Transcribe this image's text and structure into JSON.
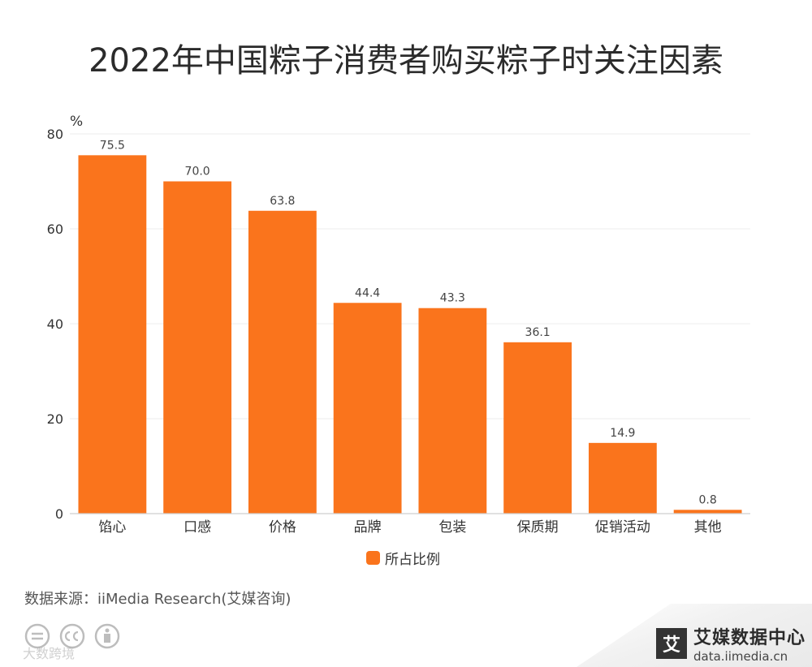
{
  "title": "2022年中国粽子消费者购买粽子时关注因素",
  "chart_data": {
    "type": "bar",
    "title": "2022年中国粽子消费者购买粽子时关注因素",
    "categories": [
      "馅心",
      "口感",
      "价格",
      "品牌",
      "包装",
      "保质期",
      "促销活动",
      "其他"
    ],
    "series": [
      {
        "name": "所占比例",
        "values": [
          75.5,
          70.0,
          63.8,
          44.4,
          43.3,
          36.1,
          14.9,
          0.8
        ]
      }
    ],
    "value_labels": [
      "75.5",
      "70.0",
      "63.8",
      "44.4",
      "43.3",
      "36.1",
      "14.9",
      "0.8"
    ],
    "ylabel": "%",
    "xlabel": "",
    "ylim": [
      0,
      80
    ],
    "yticks": [
      0,
      20,
      40,
      60,
      80
    ],
    "grid": true,
    "legend_position": "bottom-center",
    "bar_color": "#fa741c"
  },
  "legend": {
    "label": "所占比例"
  },
  "source": "数据来源：iiMedia Research(艾媒咨询)",
  "watermark": "大数跨境",
  "brand": {
    "name": "艾媒数据中心",
    "url": "data.iimedia.cn",
    "logo_char": "艾"
  }
}
